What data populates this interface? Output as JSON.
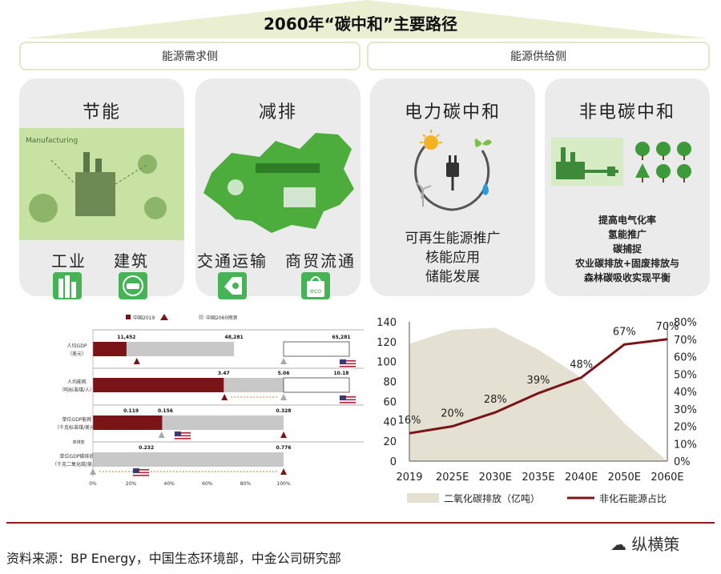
{
  "header": {
    "title": "2060年“碳中和”主要路径",
    "demand_side": "能源需求侧",
    "supply_side": "能源供给侧"
  },
  "panels": {
    "p1": {
      "title": "节能",
      "labels": [
        "工业",
        "建筑"
      ],
      "image_text": "Manufacturing"
    },
    "p2": {
      "title": "减排",
      "labels": [
        "交通运输",
        "商贸流通"
      ],
      "eco_text": "eco"
    },
    "p3": {
      "title": "电力碳中和",
      "lines": [
        "可再生能源推广",
        "核能应用",
        "储能发展"
      ]
    },
    "p4": {
      "title": "非电碳中和",
      "lines": [
        "提高电气化率",
        "氢能推广",
        "碳捕捉",
        "农业碳排放+固废排放与",
        "森林碳吸收实现平衡"
      ]
    }
  },
  "colors": {
    "dark_red": "#7b1417",
    "gray": "#c8c8c8",
    "area": "#e5e1d2",
    "line": "#7b1417",
    "accent_green": "#a8d07a"
  },
  "chart_data": [
    {
      "type": "bar",
      "legend": [
        "中国2019",
        "中国2060预测"
      ],
      "rows": [
        {
          "label": [
            "人均GDP",
            "（美元）"
          ],
          "china2019_pct": 17.6,
          "china2060_pct": 74.0,
          "values": [
            "11,452",
            "48,281",
            "65,281"
          ]
        },
        {
          "label": [
            "人均能耗",
            "（吨标准煤/人）"
          ],
          "china2019_pct": 68.6,
          "china2060_pct": 100,
          "values": [
            "3.47",
            "5.06",
            "10.18"
          ]
        },
        {
          "label": [
            "单位GDP能耗",
            "（千克标准煤/美元）"
          ],
          "china2019_pct": 36.3,
          "china2060_pct": 100,
          "values": [
            "0.119",
            "0.156",
            "0.328"
          ]
        },
        {
          "label": [
            "单位GDP碳排放",
            "（千克二氧化碳/美元）"
          ],
          "china2019_pct": 0,
          "china2060_pct": 100,
          "values": [
            "0.232",
            "0.776"
          ]
        }
      ],
      "small_note": "单排放",
      "x_ticks": [
        "0%",
        "20%",
        "40%",
        "60%",
        "80%",
        "100%"
      ]
    },
    {
      "type": "line",
      "categories": [
        "2019",
        "2025E",
        "2030E",
        "2035E",
        "2040E",
        "2050E",
        "2060E"
      ],
      "y_ticks": [
        "0",
        "20",
        "40",
        "60",
        "80",
        "100",
        "120",
        "140"
      ],
      "y2_ticks": [
        "0%",
        "10%",
        "20%",
        "30%",
        "40%",
        "50%",
        "60%",
        "70%",
        "80%"
      ],
      "ylim": [
        0,
        140
      ],
      "y2lim": [
        0,
        80
      ],
      "series": [
        {
          "name": "二氧化碳排放（亿吨）",
          "type": "area",
          "values": [
            118,
            132,
            134,
            112,
            84,
            38,
            0
          ]
        },
        {
          "name": "非化石能源占比",
          "type": "line",
          "values": [
            16,
            20,
            28,
            39,
            48,
            67,
            70
          ]
        }
      ],
      "point_labels": [
        "16%",
        "20%",
        "28%",
        "39%",
        "48%",
        "67%",
        "70%"
      ]
    }
  ],
  "footer": {
    "source": "资料来源：BP Energy，中国生态环境部，中金公司研究部",
    "watermark": "纵横策"
  }
}
